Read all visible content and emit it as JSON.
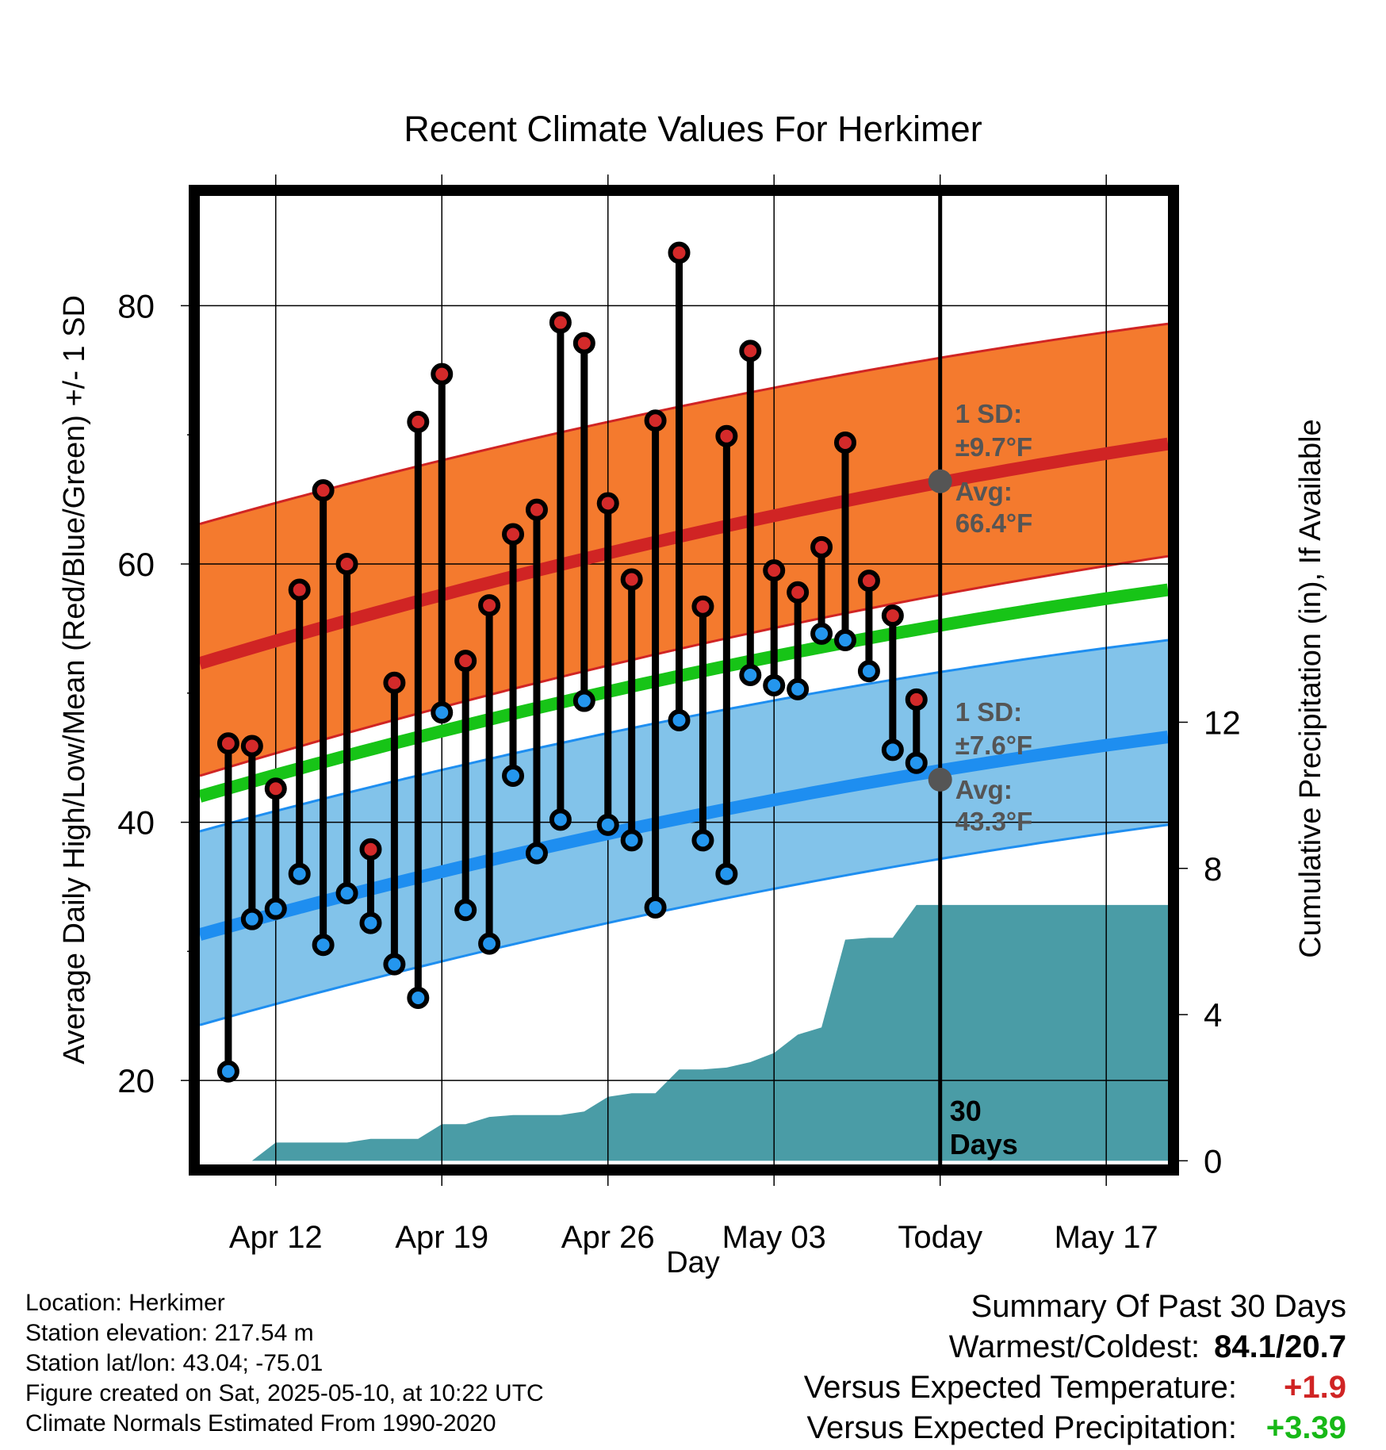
{
  "chart_data": {
    "type": "line",
    "title": "Recent Climate Values For Herkimer",
    "xlabel": "Day",
    "ylabel_left": "Average Daily High/Low/Mean (Red/Blue/Green) +/- 1 SD",
    "ylabel_right": "Cumulative Precipitation (in), If Available",
    "x_ticks": [
      {
        "day": 12,
        "label": "Apr 12"
      },
      {
        "day": 19,
        "label": "Apr 19"
      },
      {
        "day": 26,
        "label": "Apr 26"
      },
      {
        "day": 33,
        "label": "May 03"
      },
      {
        "day": 40,
        "label": "Today"
      },
      {
        "day": 47,
        "label": "May 17"
      }
    ],
    "xlim": [
      8.8,
      49.6
    ],
    "today_day": 40,
    "ylim_temp": [
      13.5,
      88.5
    ],
    "y_ticks_temp": [
      20,
      40,
      60,
      80
    ],
    "y_minor_ticks_temp": [
      30,
      50,
      70
    ],
    "ylim_precip": [
      -0.1,
      26.4
    ],
    "y_ticks_precip": [
      0,
      4,
      8,
      12
    ],
    "normals_days": [
      8.8,
      49.6
    ],
    "normal_high": [
      52.3,
      69.3
    ],
    "normal_high_upper": [
      63.1,
      78.6
    ],
    "normal_high_lower": [
      43.6,
      60.6
    ],
    "normal_mean": [
      42.0,
      58.0
    ],
    "normal_low": [
      31.3,
      46.6
    ],
    "normal_low_upper": [
      39.3,
      54.1
    ],
    "normal_low_lower": [
      24.3,
      39.8
    ],
    "normal_curve_bulge": 1.4,
    "days": [
      10,
      11,
      12,
      13,
      14,
      15,
      16,
      17,
      18,
      19,
      20,
      21,
      22,
      23,
      24,
      25,
      26,
      27,
      28,
      29,
      30,
      31,
      32,
      33,
      34,
      35,
      36,
      37,
      38,
      39
    ],
    "highs": [
      46.1,
      45.9,
      42.6,
      58.0,
      65.7,
      60.0,
      37.9,
      50.8,
      71.0,
      74.7,
      52.5,
      56.8,
      62.3,
      64.2,
      78.7,
      77.1,
      64.7,
      58.8,
      71.1,
      84.1,
      56.7,
      69.9,
      76.5,
      59.5,
      57.8,
      61.3,
      69.4,
      58.7,
      56.0,
      49.5
    ],
    "lows": [
      20.7,
      32.5,
      33.3,
      36.0,
      30.5,
      34.5,
      32.2,
      29.0,
      26.4,
      48.5,
      33.2,
      30.6,
      43.6,
      37.6,
      40.2,
      49.4,
      39.8,
      38.6,
      33.4,
      47.9,
      38.6,
      36.0,
      51.4,
      50.6,
      50.3,
      54.6,
      54.1,
      51.7,
      45.6,
      44.6
    ],
    "precip_days": [
      8.8,
      10.0,
      11.0,
      12.0,
      13.0,
      14.0,
      15.0,
      16.0,
      17.0,
      18.0,
      19.0,
      20.0,
      21.0,
      22.0,
      23.0,
      24.0,
      25.0,
      26.0,
      27.0,
      28.0,
      29.0,
      30.0,
      31.0,
      32.0,
      33.0,
      34.0,
      35.0,
      36.0,
      37.0,
      38.0,
      39.0,
      40.0,
      49.6
    ],
    "precip_cum": [
      0.0,
      0.0,
      0.0,
      0.5,
      0.5,
      0.5,
      0.5,
      0.6,
      0.6,
      0.6,
      1.0,
      1.0,
      1.2,
      1.25,
      1.25,
      1.25,
      1.35,
      1.75,
      1.85,
      1.85,
      2.5,
      2.5,
      2.55,
      2.7,
      2.95,
      3.45,
      3.65,
      6.05,
      6.1,
      6.1,
      7.0,
      7.0,
      7.0
    ],
    "annotations": {
      "high_sd_label": "1 SD:",
      "high_sd_value": "±9.7°F",
      "high_avg_label": "Avg:",
      "high_avg_value": "66.4°F",
      "high_avg_temp": 66.4,
      "low_sd_label": "1 SD:",
      "low_sd_value": "±7.6°F",
      "low_avg_label": "Avg:",
      "low_avg_value": "43.3°F",
      "low_avg_temp": 43.3,
      "days_count": "30",
      "days_word": "Days"
    },
    "colors": {
      "high_band": "#F47A2E",
      "high_line": "#D02424",
      "mean_line": "#17C417",
      "low_band": "#82C3EA",
      "low_line": "#1E8EF0",
      "band_edge_high": "#D02424",
      "band_edge_low": "#1E8EF0",
      "precip": "#4A9CA6",
      "high_marker": "#D42A2A",
      "low_marker": "#2496EE",
      "avg_marker": "#555555",
      "annotation_text": "#555555"
    }
  },
  "info": {
    "location": "Location: Herkimer",
    "elevation": "Station elevation: 217.54 m",
    "latlon": "Station lat/lon: 43.04; -75.01",
    "created": "Figure created on Sat, 2025-05-10, at 10:22 UTC",
    "normals": "Climate Normals Estimated From 1990-2020"
  },
  "summary": {
    "heading": "Summary Of Past 30 Days",
    "warm_cold_label": "Warmest/Coldest:",
    "warm_cold_value": "84.1/20.7",
    "temp_label": "Versus Expected Temperature:",
    "temp_value": "+1.9",
    "temp_color": "#D02424",
    "precip_label": "Versus Expected Precipitation:",
    "precip_value": "+3.39",
    "precip_color": "#17B817"
  }
}
